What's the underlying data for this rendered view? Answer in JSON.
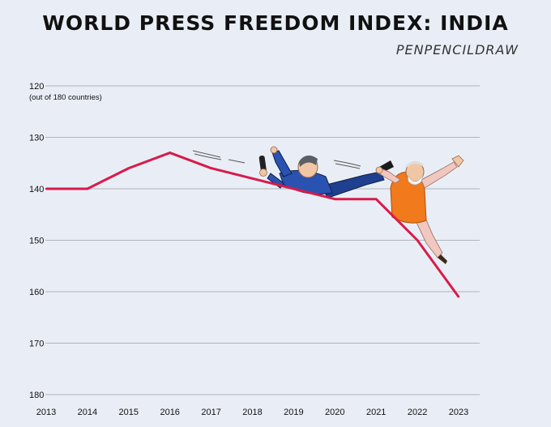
{
  "title": "WORLD PRESS FREEDOM INDEX: INDIA",
  "credit": "PENPENCILDRAW",
  "chart_data": {
    "type": "line",
    "title": "WORLD PRESS FREEDOM INDEX: INDIA",
    "ylabel_note": "(out of 180 countries)",
    "y_inverted": true,
    "ylim": [
      120,
      180
    ],
    "yticks": [
      120,
      130,
      140,
      150,
      160,
      170,
      180
    ],
    "x": [
      2013,
      2014,
      2015,
      2016,
      2017,
      2018,
      2019,
      2020,
      2021,
      2022,
      2023
    ],
    "xtick_labels": [
      "2013",
      "2014",
      "2015",
      "2016",
      "2017",
      "2018",
      "2019",
      "2020",
      "2021",
      "2022",
      "2023"
    ],
    "series": [
      {
        "values": [
          140,
          140,
          136,
          133,
          136,
          138,
          140,
          142,
          142,
          150,
          161
        ],
        "color": "#d81b4a"
      }
    ],
    "grid": true,
    "gridline_color": "#9aa0a6"
  },
  "illustration": {
    "description_icon": "cartoon-journalist-and-politician-icon"
  }
}
